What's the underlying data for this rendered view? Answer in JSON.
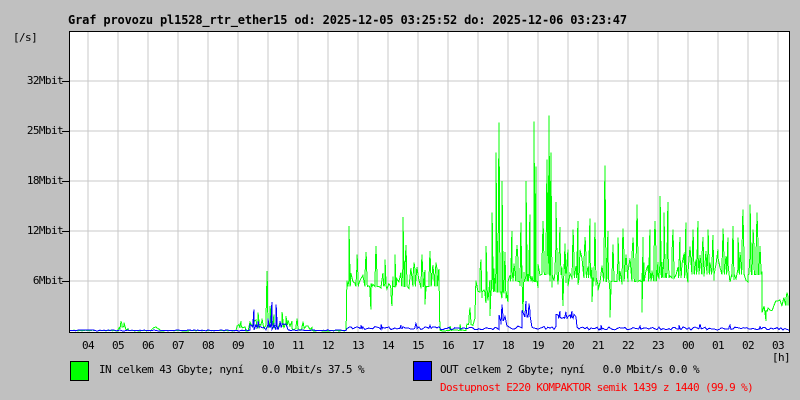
{
  "title": "Graf provozu pl1528_rtr_ether15 od: 2025-12-05 03:25:52 do: 2025-12-06 03:23:47",
  "colors": {
    "page_bg": "#c0c0c0",
    "plot_bg": "#ffffff",
    "grid": "#c9c9c9",
    "frame": "#000000",
    "in_series": "#00ff00",
    "out_series": "#0000ff",
    "availability_text": "#ff0000",
    "text": "#000000"
  },
  "y_axis": {
    "unit_label": "[/s]",
    "ticks": [
      {
        "label": "6Mbit",
        "value": 6
      },
      {
        "label": "12Mbit",
        "value": 12
      },
      {
        "label": "18Mbit",
        "value": 18
      },
      {
        "label": "25Mbit",
        "value": 25
      },
      {
        "label": "32Mbit",
        "value": 32
      }
    ]
  },
  "x_axis": {
    "unit_label": "[h]",
    "hour_labels": [
      "04",
      "05",
      "06",
      "07",
      "08",
      "09",
      "10",
      "11",
      "12",
      "13",
      "14",
      "15",
      "16",
      "17",
      "18",
      "19",
      "20",
      "21",
      "22",
      "23",
      "00",
      "01",
      "02",
      "03"
    ]
  },
  "legend": {
    "in_label": "IN celkem 43 Gbyte; nyní   0.0 Mbit/s 37.5 %",
    "out_label": "OUT celkem 2 Gbyte; nyní   0.0 Mbit/s 0.0 %"
  },
  "availability": "Dostupnost E220 KOMPAKTOR semik 1439 z 1440 (99.9 %)",
  "chart_data": {
    "type": "line",
    "title": "Graf provozu pl1528_rtr_ether15",
    "time_start": "2025-12-05 03:25:52",
    "time_end": "2025-12-06 03:23:47",
    "xlabel": "[h]",
    "ylabel": "[/s]",
    "x_range_hours": [
      3.4,
      27.37
    ],
    "y_ticks_mbit": [
      6,
      12,
      18,
      25,
      32
    ],
    "grid": true,
    "legend_position": "bottom",
    "series": [
      {
        "name": "IN",
        "color": "#00ff00",
        "unit": "Mbit/s",
        "total": "43 Gbyte",
        "now": "0.0 Mbit/s",
        "percent": "37.5 %",
        "segments": [
          {
            "t0": 3.4,
            "t1": 5.0,
            "base": 0.05,
            "amp": 0.06,
            "spikes": []
          },
          {
            "t0": 5.0,
            "t1": 5.35,
            "base": 0.55,
            "amp": 0.45,
            "spikes": [
              [
                5.1,
                1.2
              ],
              [
                5.2,
                1.0
              ]
            ]
          },
          {
            "t0": 5.35,
            "t1": 6.13,
            "base": 0.04,
            "amp": 0.04,
            "spikes": []
          },
          {
            "t0": 6.13,
            "t1": 6.4,
            "base": 0.3,
            "amp": 0.25,
            "spikes": []
          },
          {
            "t0": 6.4,
            "t1": 8.97,
            "base": 0.04,
            "amp": 0.04,
            "spikes": []
          },
          {
            "t0": 8.97,
            "t1": 9.27,
            "base": 0.45,
            "amp": 0.35,
            "spikes": [
              [
                9.1,
                1.2
              ]
            ]
          },
          {
            "t0": 9.27,
            "t1": 9.4,
            "base": 0.05,
            "amp": 0.05,
            "spikes": []
          },
          {
            "t0": 9.4,
            "t1": 10.8,
            "base": 0.8,
            "amp": 0.65,
            "spikes": [
              [
                9.67,
                2.2
              ],
              [
                9.8,
                1.5
              ],
              [
                9.97,
                7.2
              ],
              [
                10.07,
                3.0
              ],
              [
                10.2,
                2.0
              ],
              [
                10.47,
                2.3
              ],
              [
                10.6,
                1.8
              ]
            ]
          },
          {
            "t0": 10.8,
            "t1": 11.47,
            "base": 0.35,
            "amp": 0.3,
            "spikes": [
              [
                10.97,
                1.5
              ],
              [
                11.17,
                1.1
              ]
            ]
          },
          {
            "t0": 11.47,
            "t1": 12.63,
            "base": 0.04,
            "amp": 0.04,
            "spikes": []
          },
          {
            "t0": 12.63,
            "t1": 15.73,
            "base": 6.3,
            "amp": 1.7,
            "spikes": [
              [
                12.7,
                12.6
              ],
              [
                12.97,
                9.2
              ],
              [
                13.27,
                9.5
              ],
              [
                13.43,
                2.6
              ],
              [
                13.6,
                10.2
              ],
              [
                13.9,
                8.6
              ],
              [
                14.13,
                3.0
              ],
              [
                14.23,
                9.2
              ],
              [
                14.5,
                13.7
              ],
              [
                14.6,
                10.3
              ],
              [
                14.87,
                8.2
              ],
              [
                15.13,
                9.2
              ],
              [
                15.23,
                3.2
              ],
              [
                15.4,
                9.6
              ],
              [
                15.6,
                8.2
              ]
            ]
          },
          {
            "t0": 15.73,
            "t1": 16.63,
            "base": 0.07,
            "amp": 0.08,
            "spikes": [
              [
                16.07,
                0.6
              ],
              [
                16.4,
                0.8
              ]
            ]
          },
          {
            "t0": 16.63,
            "t1": 16.93,
            "base": 0.9,
            "amp": 0.7,
            "spikes": [
              [
                16.73,
                2.8
              ]
            ]
          },
          {
            "t0": 16.93,
            "t1": 18.0,
            "base": 5.5,
            "amp": 2.2,
            "spikes": [
              [
                17.1,
                8.6
              ],
              [
                17.27,
                10.2
              ],
              [
                17.4,
                1.8
              ],
              [
                17.47,
                14.2
              ],
              [
                17.6,
                22.0
              ],
              [
                17.7,
                26.2
              ],
              [
                17.8,
                18.0
              ],
              [
                17.9,
                9.5
              ]
            ]
          },
          {
            "t0": 18.0,
            "t1": 19.0,
            "base": 7.0,
            "amp": 2.6,
            "spikes": [
              [
                18.13,
                12.0
              ],
              [
                18.3,
                10.3
              ],
              [
                18.43,
                13.0
              ],
              [
                18.5,
                2.2
              ],
              [
                18.6,
                18.0
              ],
              [
                18.73,
                14.0
              ],
              [
                18.87,
                26.3
              ],
              [
                18.93,
                20.0
              ]
            ]
          },
          {
            "t0": 19.0,
            "t1": 20.0,
            "base": 8.0,
            "amp": 2.8,
            "spikes": [
              [
                19.17,
                13.2
              ],
              [
                19.3,
                21.0
              ],
              [
                19.37,
                27.2
              ],
              [
                19.43,
                22.0
              ],
              [
                19.6,
                15.5
              ],
              [
                19.73,
                12.5
              ],
              [
                19.83,
                3.0
              ],
              [
                19.9,
                10.5
              ]
            ]
          },
          {
            "t0": 20.0,
            "t1": 21.0,
            "base": 7.5,
            "amp": 2.4,
            "spikes": [
              [
                20.17,
                12.2
              ],
              [
                20.33,
                13.2
              ],
              [
                20.57,
                11.3
              ],
              [
                20.73,
                13.5
              ],
              [
                20.8,
                3.5
              ],
              [
                20.9,
                13.0
              ]
            ]
          },
          {
            "t0": 21.0,
            "t1": 22.0,
            "base": 7.0,
            "amp": 2.4,
            "spikes": [
              [
                21.23,
                20.2
              ],
              [
                21.33,
                12.0
              ],
              [
                21.4,
                1.6
              ],
              [
                21.5,
                10.4
              ],
              [
                21.67,
                11.2
              ],
              [
                21.83,
                12.3
              ]
            ]
          },
          {
            "t0": 22.0,
            "t1": 23.0,
            "base": 7.0,
            "amp": 2.4,
            "spikes": [
              [
                22.17,
                11.2
              ],
              [
                22.3,
                15.2
              ],
              [
                22.47,
                2.2
              ],
              [
                22.5,
                11.3
              ],
              [
                22.73,
                12.2
              ],
              [
                22.9,
                13.2
              ]
            ]
          },
          {
            "t0": 23.0,
            "t1": 24.0,
            "base": 7.5,
            "amp": 2.4,
            "spikes": [
              [
                23.07,
                16.2
              ],
              [
                23.2,
                14.2
              ],
              [
                23.33,
                15.5
              ],
              [
                23.5,
                12.2
              ],
              [
                23.73,
                11.3
              ],
              [
                23.93,
                13.0
              ]
            ]
          },
          {
            "t0": 24.0,
            "t1": 25.0,
            "base": 8.0,
            "amp": 2.3,
            "spikes": [
              [
                24.17,
                12.2
              ],
              [
                24.33,
                13.2
              ],
              [
                24.5,
                11.3
              ],
              [
                24.67,
                12.2
              ],
              [
                24.83,
                11.5
              ]
            ]
          },
          {
            "t0": 25.0,
            "t1": 26.0,
            "base": 8.0,
            "amp": 2.3,
            "spikes": [
              [
                25.17,
                12.3
              ],
              [
                25.33,
                11.2
              ],
              [
                25.5,
                12.6
              ],
              [
                25.67,
                11.2
              ],
              [
                25.83,
                14.6
              ]
            ]
          },
          {
            "t0": 26.0,
            "t1": 26.47,
            "base": 8.0,
            "amp": 2.8,
            "spikes": [
              [
                26.07,
                15.2
              ],
              [
                26.17,
                12.2
              ],
              [
                26.3,
                14.2
              ],
              [
                26.4,
                10.2
              ]
            ]
          },
          {
            "t0": 26.47,
            "t1": 26.93,
            "base": 2.8,
            "amp": 0.7,
            "spikes": [
              [
                26.6,
                1.2
              ]
            ]
          },
          {
            "t0": 26.93,
            "t1": 27.37,
            "base": 3.6,
            "amp": 0.7,
            "spikes": [
              [
                27.3,
                4.6
              ]
            ]
          }
        ]
      },
      {
        "name": "OUT",
        "color": "#0000ff",
        "unit": "Mbit/s",
        "total": "2 Gbyte",
        "now": "0.0 Mbit/s",
        "percent": "0.0 %",
        "segments": [
          {
            "t0": 3.4,
            "t1": 9.4,
            "base": 0.07,
            "amp": 0.06,
            "spikes": []
          },
          {
            "t0": 9.4,
            "t1": 10.73,
            "base": 0.5,
            "amp": 0.4,
            "spikes": [
              [
                9.53,
                2.6
              ],
              [
                9.67,
                1.2
              ],
              [
                10.0,
                1.5
              ],
              [
                10.13,
                3.5
              ],
              [
                10.27,
                3.2
              ],
              [
                10.4,
                1.2
              ]
            ]
          },
          {
            "t0": 10.73,
            "t1": 12.63,
            "base": 0.09,
            "amp": 0.07,
            "spikes": []
          },
          {
            "t0": 12.63,
            "t1": 16.63,
            "base": 0.35,
            "amp": 0.18,
            "spikes": [
              [
                13.1,
                0.7
              ],
              [
                13.77,
                0.8
              ],
              [
                14.43,
                0.7
              ],
              [
                14.93,
                0.9
              ],
              [
                15.4,
                0.7
              ]
            ]
          },
          {
            "t0": 16.63,
            "t1": 17.7,
            "base": 0.3,
            "amp": 0.15,
            "spikes": []
          },
          {
            "t0": 17.7,
            "t1": 18.0,
            "base": 1.4,
            "amp": 0.8,
            "spikes": [
              [
                17.8,
                3.2
              ]
            ]
          },
          {
            "t0": 18.0,
            "t1": 18.47,
            "base": 0.4,
            "amp": 0.2,
            "spikes": []
          },
          {
            "t0": 18.47,
            "t1": 18.8,
            "base": 2.0,
            "amp": 0.9,
            "spikes": [
              [
                18.6,
                3.6
              ],
              [
                18.7,
                3.3
              ]
            ]
          },
          {
            "t0": 18.8,
            "t1": 19.6,
            "base": 0.4,
            "amp": 0.2,
            "spikes": []
          },
          {
            "t0": 19.6,
            "t1": 20.3,
            "base": 1.8,
            "amp": 0.35,
            "spikes": [
              [
                19.73,
                2.4
              ],
              [
                19.93,
                2.3
              ],
              [
                20.13,
                2.4
              ]
            ]
          },
          {
            "t0": 20.3,
            "t1": 27.37,
            "base": 0.3,
            "amp": 0.18,
            "spikes": [
              [
                21.1,
                0.7
              ],
              [
                22.4,
                0.6
              ],
              [
                23.7,
                0.7
              ],
              [
                24.4,
                0.8
              ],
              [
                25.4,
                0.7
              ],
              [
                26.4,
                0.5
              ]
            ]
          }
        ]
      }
    ]
  }
}
